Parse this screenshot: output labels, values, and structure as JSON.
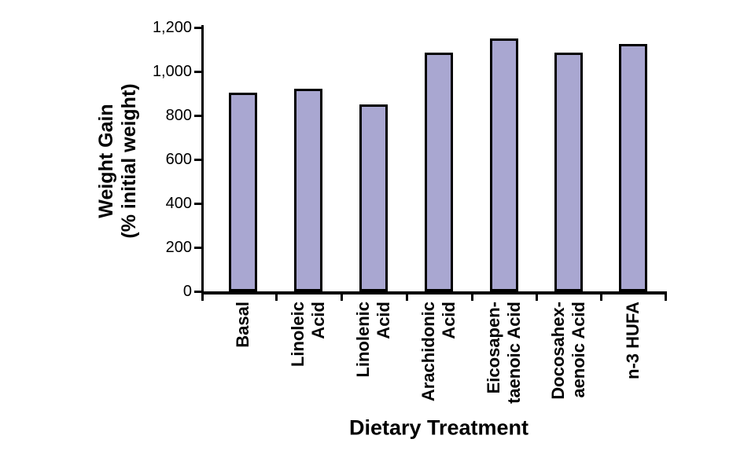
{
  "chart_data": {
    "type": "bar",
    "title": "",
    "xlabel": "Dietary Treatment",
    "ylabel": "Weight Gain\n(% initial weight)",
    "categories": [
      "Basal",
      "Linoleic\nAcid",
      "Linolenic\nAcid",
      "Arachidonic\nAcid",
      "Eicosapen-\ntaenoic Acid",
      "Docosahex-\naenoic Acid",
      "n-3 HUFA"
    ],
    "values": [
      905,
      920,
      850,
      1085,
      1150,
      1085,
      1125
    ],
    "ylim": [
      0,
      1200
    ],
    "ytick_interval": 200,
    "ytick_labels": [
      "0",
      "200",
      "400",
      "600",
      "800",
      "1,000",
      "1,200"
    ],
    "grid": false,
    "legend": "none",
    "colors": {
      "bar_fill": "#A9A7D1",
      "bar_border": "#000000",
      "axis": "#000000",
      "text": "#000000",
      "background": "#FFFFFF"
    }
  }
}
